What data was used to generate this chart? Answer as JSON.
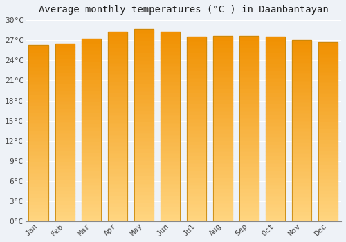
{
  "title": "Average monthly temperatures (°C ) in Daanbantayan",
  "months": [
    "Jan",
    "Feb",
    "Mar",
    "Apr",
    "May",
    "Jun",
    "Jul",
    "Aug",
    "Sep",
    "Oct",
    "Nov",
    "Dec"
  ],
  "temperatures": [
    26.3,
    26.5,
    27.2,
    28.3,
    28.7,
    28.3,
    27.5,
    27.6,
    27.6,
    27.5,
    27.0,
    26.7
  ],
  "ylim": [
    0,
    30
  ],
  "yticks": [
    0,
    3,
    6,
    9,
    12,
    15,
    18,
    21,
    24,
    27,
    30
  ],
  "bar_color_main": "#F5A623",
  "bar_color_light": "#FFD580",
  "bar_color_dark": "#E08C00",
  "bar_edge_color": "#C8870A",
  "background_color": "#EEF2F7",
  "plot_bg_color": "#EEF2F7",
  "grid_color": "#FFFFFF",
  "title_fontsize": 10,
  "tick_fontsize": 8,
  "font_family": "monospace"
}
